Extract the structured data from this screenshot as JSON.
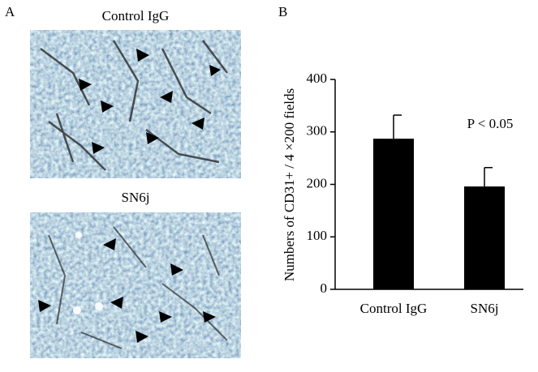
{
  "panel_labels": [
    "A",
    "B"
  ],
  "images": [
    {
      "label": "Control IgG"
    },
    {
      "label": "SN6j"
    }
  ],
  "chart_data": {
    "type": "bar",
    "ylabel": "Numbers of CD31+ / 4 ×200 fields",
    "annotation": "P < 0.05",
    "categories": [
      "Control IgG",
      "SN6j"
    ],
    "values": [
      287,
      196
    ],
    "errors": [
      45,
      36
    ],
    "color": "#000000",
    "ylim": [
      0,
      400
    ],
    "yticks": [
      0,
      100,
      200,
      300,
      400
    ],
    "grid": false
  }
}
